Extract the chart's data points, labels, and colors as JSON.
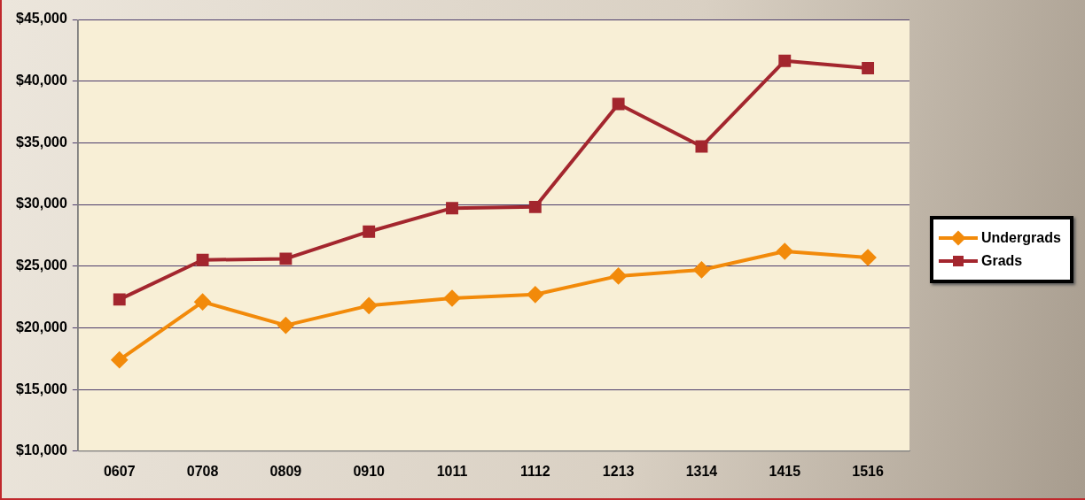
{
  "chart_data": {
    "type": "line",
    "categories": [
      "0607",
      "0708",
      "0809",
      "0910",
      "1011",
      "1112",
      "1213",
      "1314",
      "1415",
      "1516"
    ],
    "series": [
      {
        "name": "Undergrads",
        "color": "#f28a0a",
        "marker": "diamond",
        "values": [
          17400,
          22100,
          20200,
          21800,
          22400,
          22700,
          24200,
          24700,
          26200,
          25700
        ]
      },
      {
        "name": "Grads",
        "color": "#a3262e",
        "marker": "square",
        "values": [
          22300,
          25500,
          25600,
          27800,
          29700,
          29800,
          38150,
          34700,
          41650,
          41050
        ]
      }
    ],
    "ylim": [
      10000,
      45000
    ],
    "yticks": [
      {
        "value": 10000,
        "label": "$10,000"
      },
      {
        "value": 15000,
        "label": "$15,000"
      },
      {
        "value": 20000,
        "label": "$20,000"
      },
      {
        "value": 25000,
        "label": "$25,000"
      },
      {
        "value": 30000,
        "label": "$30,000"
      },
      {
        "value": 35000,
        "label": "$35,000"
      },
      {
        "value": 40000,
        "label": "$40,000"
      },
      {
        "value": 45000,
        "label": "$45,000"
      }
    ],
    "grid": "y",
    "legend": "right",
    "line_style": "solid"
  }
}
